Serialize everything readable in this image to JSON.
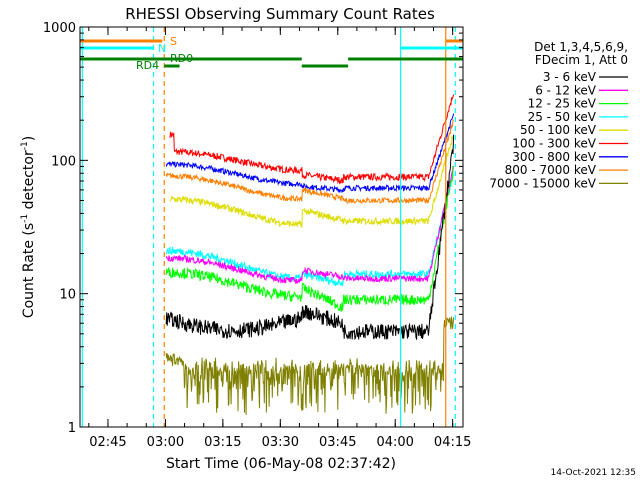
{
  "chart_data": {
    "type": "line",
    "title": "RHESSI Observing Summary Count Rates",
    "xlabel": "Start Time (06-May-08 02:37:42)",
    "ylabel_main": "Count Rate (s",
    "ylabel_sup1": "-1",
    "ylabel_mid": " detector",
    "ylabel_sup2": "-1",
    "ylabel_end": ")",
    "yscale": "log",
    "ylim": [
      1,
      1000
    ],
    "xlim_minutes": [
      0,
      100
    ],
    "x_ticks": [
      {
        "label": "02:45",
        "min": 7.3
      },
      {
        "label": "03:00",
        "min": 22.3
      },
      {
        "label": "03:15",
        "min": 37.3
      },
      {
        "label": "03:30",
        "min": 52.3
      },
      {
        "label": "03:45",
        "min": 67.3
      },
      {
        "label": "04:00",
        "min": 82.3
      },
      {
        "label": "04:15",
        "min": 97.3
      }
    ],
    "y_ticks": [
      {
        "label": "1",
        "value": 1
      },
      {
        "label": "10",
        "value": 10
      },
      {
        "label": "100",
        "value": 100
      },
      {
        "label": "1000",
        "value": 1000
      }
    ],
    "legend_header": [
      "Det 1,3,4,5,6,9,",
      "FDecim 1, Att 0"
    ],
    "series": [
      {
        "name": "3 - 6 keV",
        "color": "#000000"
      },
      {
        "name": "6 - 12 keV",
        "color": "#ff00ff"
      },
      {
        "name": "12 - 25 keV",
        "color": "#00ff00"
      },
      {
        "name": "25 - 50 keV",
        "color": "#00ffff"
      },
      {
        "name": "50 - 100 keV",
        "color": "#dddd00"
      },
      {
        "name": "100 - 300 keV",
        "color": "#ff0000"
      },
      {
        "name": "300 - 800 keV",
        "color": "#0000ff"
      },
      {
        "name": "800 - 7000 keV",
        "color": "#ff8000"
      },
      {
        "name": "7000 - 15000 keV",
        "color": "#808000"
      }
    ],
    "flags": [
      {
        "label": "S",
        "color": "#ff8000"
      },
      {
        "label": "N",
        "color": "#00ffff"
      },
      {
        "label": "RD4",
        "color": "#008000"
      },
      {
        "label": "RD0",
        "color": "#008000"
      }
    ],
    "timestamp": "14-Oct-2021 12:35"
  }
}
